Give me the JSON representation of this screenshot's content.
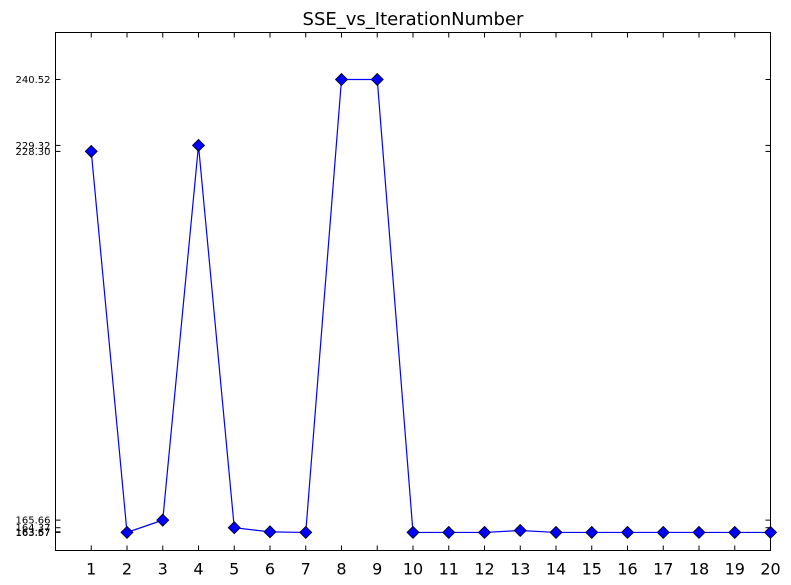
{
  "chart_data": {
    "type": "line",
    "title": "SSE_vs_IterationNumber",
    "xlabel": "",
    "ylabel": "",
    "x": [
      1,
      2,
      3,
      4,
      5,
      6,
      7,
      8,
      9,
      10,
      11,
      12,
      13,
      14,
      15,
      16,
      17,
      18,
      19,
      20
    ],
    "x_tick_labels": [
      "1",
      "2",
      "3",
      "4",
      "5",
      "6",
      "7",
      "8",
      "9",
      "10",
      "11",
      "12",
      "13",
      "14",
      "15",
      "16",
      "17",
      "18",
      "19",
      "20"
    ],
    "xlim": [
      0,
      20
    ],
    "series": [
      {
        "values": [
          228.3,
          163.57,
          165.66,
          229.32,
          164.37,
          163.67,
          163.57,
          240.52,
          240.52,
          163.57,
          163.57,
          163.57,
          163.9,
          163.57,
          163.57,
          163.57,
          163.57,
          163.57,
          163.57,
          163.57
        ],
        "color": "#0000ff",
        "marker": "diamond"
      }
    ],
    "y_ticks": [
      163.57,
      163.67,
      164.37,
      165.66,
      228.3,
      229.32,
      240.52
    ],
    "y_tick_labels": [
      "163.57",
      "163.67",
      "164.37",
      "165.66",
      "228.30",
      "229.32",
      "240.52"
    ],
    "ylim": [
      160.5,
      248.5
    ],
    "grid": false,
    "legend": "none"
  }
}
